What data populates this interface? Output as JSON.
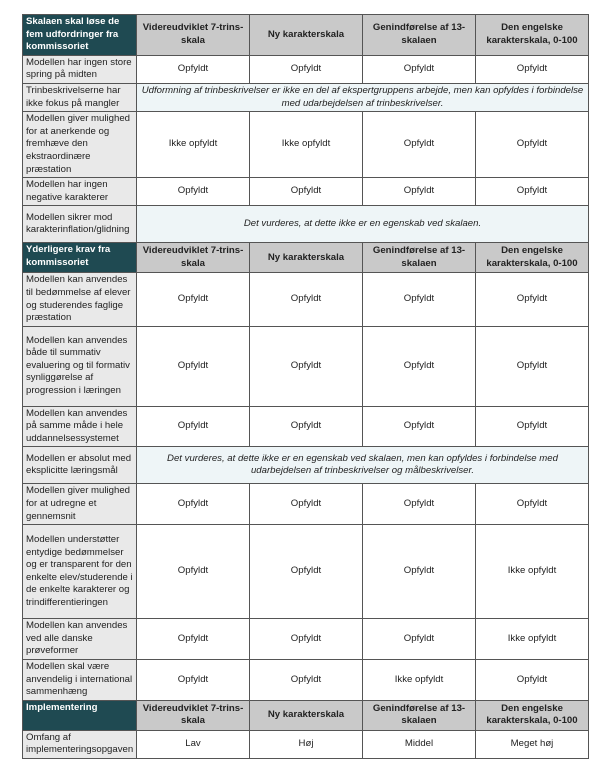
{
  "columns": [
    "Videreudviklet 7-trins-skala",
    "Ny karakterskala",
    "Genindførelse af 13-skalaen",
    "Den engelske karakterskala, 0-100"
  ],
  "sections": [
    {
      "title": "Skalaen skal løse de fem udfordringer fra kommissoriet",
      "rows": [
        {
          "label": "Modellen har ingen store spring på midten",
          "values": [
            "Opfyldt",
            "Opfyldt",
            "Opfyldt",
            "Opfyldt"
          ]
        },
        {
          "label": "Trinbeskrivelserne har ikke fokus på mangler",
          "note": "Udformning af trinbeskrivelser er ikke en del af ekspertgruppens arbejde, men kan opfyldes i forbindelse med udarbejdelsen af trinbeskrivelser."
        },
        {
          "label": "Modellen giver mulighed for at anerkende og fremhæve den ekstraordinære præstation",
          "values": [
            "Ikke opfyldt",
            "Ikke opfyldt",
            "Opfyldt",
            "Opfyldt"
          ]
        },
        {
          "label": "Modellen har ingen negative karakterer",
          "values": [
            "Opfyldt",
            "Opfyldt",
            "Opfyldt",
            "Opfyldt"
          ]
        },
        {
          "label": "Modellen sikrer mod karakterinflation/glidning",
          "note": "Det vurderes, at dette ikke er en egenskab ved skalaen."
        }
      ]
    },
    {
      "title": "Yderligere krav fra kommissoriet",
      "rows": [
        {
          "label": "Modellen kan anvendes til bedømmelse af elever og studerendes faglige præstation",
          "values": [
            "Opfyldt",
            "Opfyldt",
            "Opfyldt",
            "Opfyldt"
          ]
        },
        {
          "label": "Modellen kan anvendes både til summativ evaluering og til formativ synliggørelse af progression i læringen",
          "values": [
            "Opfyldt",
            "Opfyldt",
            "Opfyldt",
            "Opfyldt"
          ]
        },
        {
          "label": "Modellen kan anvendes på samme måde i hele uddannelsessystemet",
          "values": [
            "Opfyldt",
            "Opfyldt",
            "Opfyldt",
            "Opfyldt"
          ]
        },
        {
          "label": "Modellen er absolut med eksplicitte læringsmål",
          "note": "Det vurderes, at dette ikke er en egenskab ved skalaen, men kan opfyldes i forbindelse med udarbejdelsen af trinbeskrivelser og målbeskrivelser."
        },
        {
          "label": "Modellen giver mulighed for at udregne et gennemsnit",
          "values": [
            "Opfyldt",
            "Opfyldt",
            "Opfyldt",
            "Opfyldt"
          ]
        },
        {
          "label": "Modellen understøtter entydige bedømmelser og er transparent for den enkelte elev/studerende i de enkelte karakterer og trindifferentieringen",
          "values": [
            "Opfyldt",
            "Opfyldt",
            "Opfyldt",
            "Ikke opfyldt"
          ]
        },
        {
          "label": "Modellen kan anvendes ved alle danske prøveformer",
          "values": [
            "Opfyldt",
            "Opfyldt",
            "Opfyldt",
            "Ikke opfyldt"
          ]
        },
        {
          "label": "Modellen skal være anvendelig i international sammenhæng",
          "values": [
            "Opfyldt",
            "Opfyldt",
            "Ikke opfyldt",
            "Opfyldt"
          ]
        }
      ]
    },
    {
      "title": "Implementering",
      "rows": [
        {
          "label": "Omfang af implementeringsopgaven",
          "values": [
            "Lav",
            "Høj",
            "Middel",
            "Meget høj"
          ]
        }
      ]
    }
  ]
}
